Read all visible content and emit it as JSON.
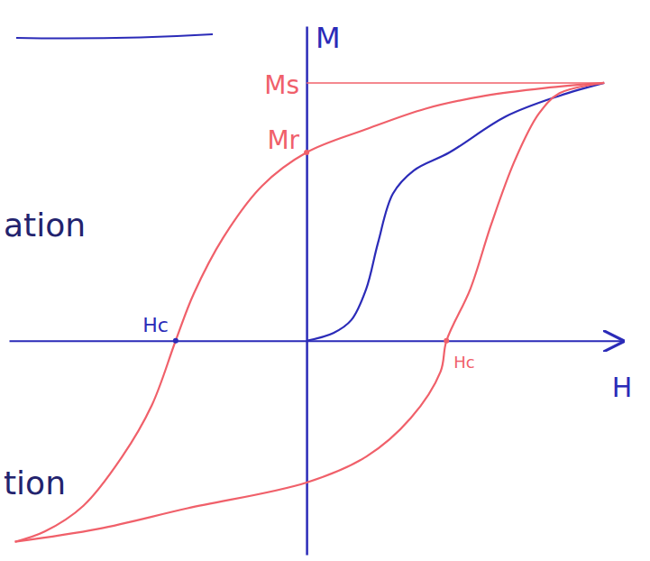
{
  "chart_data": {
    "type": "line",
    "x_label": "H",
    "y_label": "M",
    "xlim": [
      -1.0,
      1.06
    ],
    "ylim": [
      -0.83,
      1.22
    ],
    "tick_labels": false,
    "series": [
      {
        "color": "#2b2bb8",
        "line_style": "solid",
        "x": [
          0,
          0.09,
          0.15,
          0.2,
          0.24,
          0.29,
          0.36,
          0.48,
          0.67,
          0.85,
          1.0
        ],
        "values": [
          0,
          0.03,
          0.08,
          0.2,
          0.38,
          0.57,
          0.66,
          0.73,
          0.87,
          0.95,
          1.0
        ]
      },
      {
        "color": "#f0606a",
        "line_style": "solid",
        "x": [
          1.0,
          0.8,
          0.6,
          0.4,
          0.2,
          0,
          -0.15,
          -0.28,
          -0.38,
          -0.44,
          -0.52,
          -0.62,
          -0.75,
          -0.88,
          -0.98
        ],
        "values": [
          1.0,
          0.98,
          0.95,
          0.9,
          0.82,
          0.73,
          0.6,
          0.4,
          0.18,
          0,
          -0.25,
          -0.45,
          -0.64,
          -0.74,
          -0.78
        ]
      },
      {
        "color": "#f0606a",
        "line_style": "solid",
        "x": [
          -0.98,
          -0.7,
          -0.4,
          0,
          0.2,
          0.35,
          0.45,
          0.47,
          0.55,
          0.62,
          0.7,
          0.78,
          0.85,
          1.0
        ],
        "values": [
          -0.78,
          -0.73,
          -0.65,
          -0.55,
          -0.45,
          -0.3,
          -0.12,
          0,
          0.2,
          0.45,
          0.7,
          0.88,
          0.96,
          1.0
        ]
      }
    ],
    "annotations": [
      {
        "label": "Ms",
        "axis": "y",
        "value": 1.0,
        "color": "#f0606a"
      },
      {
        "label": "Mr",
        "axis": "y",
        "value": 0.73,
        "color": "#f0606a"
      },
      {
        "label": "Hc",
        "axis": "x",
        "value": -0.44,
        "color": "#2b2bb8"
      },
      {
        "label": "Hc",
        "axis": "x",
        "value": 0.47,
        "color": "#f0606a"
      }
    ]
  },
  "margin_notes": [
    "ation",
    "tion"
  ]
}
